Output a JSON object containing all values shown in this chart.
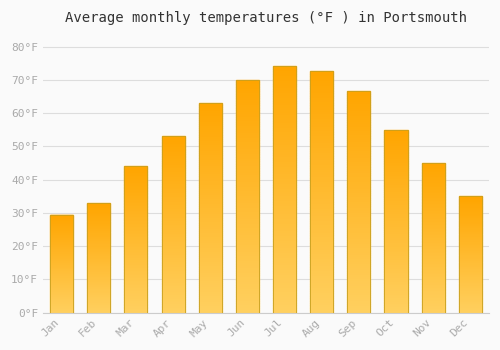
{
  "title": "Average monthly temperatures (°F ) in Portsmouth",
  "months": [
    "Jan",
    "Feb",
    "Mar",
    "Apr",
    "May",
    "Jun",
    "Jul",
    "Aug",
    "Sep",
    "Oct",
    "Nov",
    "Dec"
  ],
  "values": [
    29.5,
    33.0,
    44.0,
    53.0,
    63.0,
    70.0,
    74.0,
    72.5,
    66.5,
    55.0,
    45.0,
    35.0
  ],
  "bar_color_bottom": "#FFD060",
  "bar_color_top": "#FFA500",
  "bar_edge_color": "#C8A020",
  "background_color": "#FAFAFA",
  "grid_color": "#DDDDDD",
  "ylim": [
    0,
    84
  ],
  "yticks": [
    0,
    10,
    20,
    30,
    40,
    50,
    60,
    70,
    80
  ],
  "ytick_labels": [
    "0°F",
    "10°F",
    "20°F",
    "30°F",
    "40°F",
    "50°F",
    "60°F",
    "70°F",
    "80°F"
  ],
  "tick_color": "#AAAAAA",
  "title_fontsize": 10,
  "tick_fontsize": 8,
  "font_family": "monospace"
}
